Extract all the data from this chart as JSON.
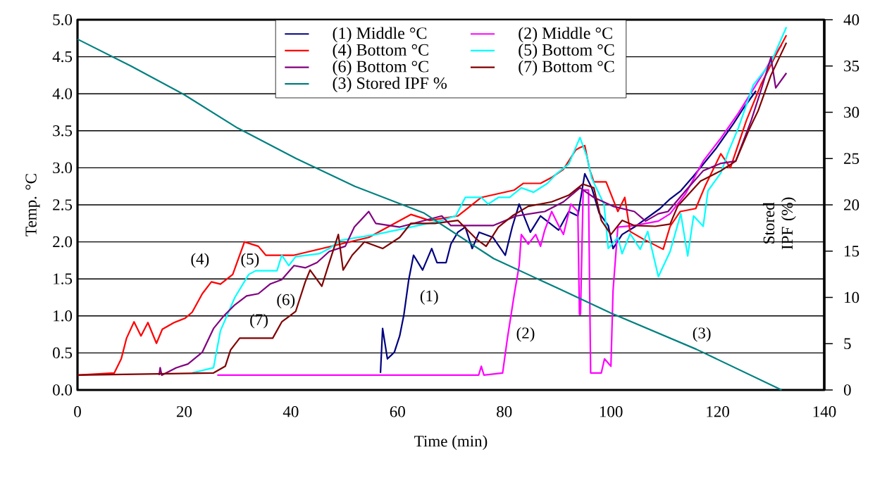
{
  "chart_data": {
    "type": "line",
    "xlabel": "Time (min)",
    "ylabel": "Temp. °C",
    "y2label": "Stored IPF (%)",
    "xlim": [
      0,
      140
    ],
    "xticks": [
      0,
      20,
      40,
      60,
      80,
      100,
      120,
      140
    ],
    "ylim": [
      0,
      5
    ],
    "yticks": [
      {
        "value": 0,
        "label": "0.0"
      },
      {
        "value": 0.5,
        "label": "0.5"
      },
      {
        "value": 1,
        "label": "1.0"
      },
      {
        "value": 1.5,
        "label": "1.5"
      },
      {
        "value": 2,
        "label": "2.0"
      },
      {
        "value": 2.5,
        "label": "2.5"
      },
      {
        "value": 3,
        "label": "3.0"
      },
      {
        "value": 3.5,
        "label": "3.5"
      },
      {
        "value": 4,
        "label": "4.0"
      },
      {
        "value": 4.5,
        "label": "4.5"
      },
      {
        "value": 5,
        "label": "5.0"
      }
    ],
    "y2lim": [
      0,
      40
    ],
    "y2ticks": [
      0,
      5,
      10,
      15,
      20,
      25,
      30,
      35,
      40
    ],
    "grid": "y",
    "legend": "top",
    "series": [
      {
        "name": "(1) Middle °C",
        "color": "#000080",
        "x": [
          56.8,
          57.2,
          58.1,
          59.4,
          60.4,
          61.2,
          62.1,
          63,
          64.7,
          66.4,
          67.4,
          69.1,
          70,
          71.3,
          72.7,
          74,
          75.3,
          77.9,
          80.2,
          81.5,
          82.8,
          84.9,
          86.8,
          90.2,
          92.1,
          93.8,
          95.1,
          96.4,
          97.8,
          99.5,
          100.4,
          102.1,
          104.4,
          109.2,
          111.1,
          113.1,
          115.5,
          119.7,
          123,
          124.8,
          127.2
        ],
        "values": [
          0.23,
          0.83,
          0.42,
          0.51,
          0.73,
          1.02,
          1.49,
          1.82,
          1.62,
          1.91,
          1.72,
          1.72,
          1.97,
          2.13,
          2.2,
          1.91,
          2.13,
          2.06,
          1.82,
          2.2,
          2.51,
          2.13,
          2.35,
          2.16,
          2.41,
          2.35,
          2.92,
          2.73,
          2.39,
          2.22,
          1.91,
          2.1,
          2.2,
          2.45,
          2.58,
          2.69,
          2.89,
          3.26,
          3.6,
          3.8,
          4.04
        ]
      },
      {
        "name": "(2) Middle °C",
        "color": "#ff00ff",
        "x": [
          26.2,
          75.2,
          75.7,
          76.2,
          79.7,
          80.6,
          81.9,
          82.8,
          83.2,
          84.5,
          85.9,
          86.8,
          87.6,
          88.9,
          90.2,
          91.1,
          92.5,
          93.8,
          94.1,
          94.3,
          94.8,
          95.8,
          96.2,
          98.2,
          98.8,
          100,
          100.4,
          101.3,
          104.4,
          108.9,
          111.1,
          114,
          117.3,
          120.6,
          123.9,
          127.2,
          130,
          132
        ],
        "values": [
          0.2,
          0.2,
          0.32,
          0.2,
          0.23,
          0.7,
          1.3,
          1.68,
          2.1,
          1.97,
          2.1,
          1.94,
          2.16,
          2.41,
          2.22,
          2.1,
          2.51,
          2.41,
          1.02,
          1.02,
          2.7,
          2.7,
          0.23,
          0.23,
          0.42,
          0.32,
          1.34,
          2.2,
          2.22,
          2.28,
          2.38,
          2.65,
          3.09,
          3.4,
          3.74,
          4.12,
          4.45,
          4.66
        ]
      },
      {
        "name": "(4) Bottom °C",
        "color": "#ff0000",
        "x": [
          0,
          6.9,
          8.2,
          9.2,
          10.6,
          11.9,
          13.2,
          14.8,
          15.9,
          18.1,
          20.2,
          21.5,
          23.4,
          25.1,
          26.8,
          29.1,
          31.3,
          33.9,
          35.3,
          40.6,
          54.6,
          62.5,
          66,
          71.3,
          73.6,
          75.7,
          81.9,
          83.6,
          86.8,
          88.9,
          91.1,
          93.4,
          94.1,
          95.1,
          96,
          96.8,
          99.1,
          101.3,
          102.6,
          103.6,
          106,
          109.8,
          111.1,
          113,
          115.9,
          117.7,
          120.6,
          122.4,
          125.4,
          128.1,
          130.9,
          132.9
        ],
        "values": [
          0.2,
          0.23,
          0.42,
          0.7,
          0.92,
          0.73,
          0.91,
          0.63,
          0.82,
          0.91,
          0.97,
          1.05,
          1.3,
          1.46,
          1.43,
          1.56,
          2.0,
          1.94,
          1.82,
          1.82,
          2.06,
          2.37,
          2.29,
          2.35,
          2.48,
          2.6,
          2.7,
          2.79,
          2.79,
          2.87,
          2.98,
          3.24,
          3.27,
          3.3,
          2.98,
          2.81,
          2.81,
          2.41,
          2.6,
          2.14,
          2.04,
          1.9,
          2.21,
          2.41,
          2.45,
          2.76,
          3.19,
          3.0,
          3.64,
          4.12,
          4.52,
          4.79
        ]
      },
      {
        "name": "(5) Bottom °C",
        "color": "#00ffff",
        "x": [
          21.5,
          25.5,
          26.8,
          29.5,
          32.1,
          33.4,
          37.4,
          38.3,
          39.6,
          40.9,
          45.3,
          47.2,
          49.3,
          55.9,
          62.5,
          68.3,
          70.9,
          72.7,
          75.7,
          77,
          78.9,
          81,
          83.2,
          85.5,
          88.1,
          89.8,
          92.1,
          94.2,
          95.5,
          96.4,
          98.7,
          99.5,
          101.3,
          102.1,
          103.6,
          105.5,
          106.9,
          108.9,
          111.1,
          113.1,
          114.4,
          115.5,
          117.3,
          118.2,
          120.6,
          122.1,
          123.9,
          126.7,
          130,
          132.9
        ],
        "values": [
          0.23,
          0.3,
          0.8,
          1.25,
          1.56,
          1.61,
          1.61,
          1.82,
          1.68,
          1.8,
          1.84,
          1.91,
          2.02,
          2.1,
          2.2,
          2.29,
          2.35,
          2.6,
          2.6,
          2.51,
          2.6,
          2.6,
          2.73,
          2.67,
          2.79,
          2.92,
          3.05,
          3.41,
          3.15,
          2.86,
          2.51,
          1.91,
          2.06,
          1.84,
          2.11,
          1.9,
          2.14,
          1.53,
          1.87,
          2.38,
          1.81,
          2.35,
          2.21,
          2.69,
          2.93,
          3.23,
          3.54,
          4.12,
          4.42,
          4.9
        ]
      },
      {
        "name": "(6) Bottom °C",
        "color": "#800080",
        "x": [
          15.3,
          15.5,
          15.8,
          18.5,
          20.7,
          23.4,
          25.5,
          27.3,
          29.5,
          31.7,
          33.9,
          36.1,
          38.3,
          40.6,
          42.7,
          44.9,
          47.2,
          50.2,
          51.9,
          54.6,
          55.9,
          60.4,
          68.3,
          70,
          77.9,
          82.3,
          87.6,
          91.1,
          94.2,
          96.8,
          100.4,
          104.4,
          106.5,
          108.9,
          110.7,
          114,
          117.3,
          120.6,
          123.4,
          126.3,
          128.1,
          130,
          130.9,
          132.9
        ],
        "values": [
          0.2,
          0.3,
          0.2,
          0.3,
          0.35,
          0.51,
          0.83,
          0.99,
          1.15,
          1.27,
          1.3,
          1.43,
          1.49,
          1.68,
          1.65,
          1.72,
          1.87,
          1.94,
          2.2,
          2.41,
          2.25,
          2.2,
          2.35,
          2.22,
          2.22,
          2.35,
          2.41,
          2.54,
          2.73,
          2.6,
          2.48,
          2.41,
          2.28,
          2.38,
          2.41,
          2.69,
          2.96,
          3.06,
          3.09,
          3.64,
          4.04,
          4.49,
          4.08,
          4.28
        ]
      },
      {
        "name": "(7) Bottom °C",
        "color": "#800000",
        "x": [
          0,
          25.5,
          27.7,
          28.7,
          30.4,
          36.6,
          38.3,
          39.6,
          40.9,
          42.7,
          43.6,
          45.8,
          47.2,
          48.9,
          49.8,
          51.5,
          53.8,
          57.2,
          60.4,
          62.5,
          67,
          71.3,
          74.9,
          76.6,
          78.9,
          81.5,
          84.5,
          88.9,
          92.1,
          94.7,
          96.8,
          98.2,
          100,
          102.1,
          104.4,
          108.3,
          111.1,
          112.5,
          116.8,
          120.6,
          123.4,
          125.8,
          127.6,
          130,
          132.9
        ],
        "values": [
          0.2,
          0.23,
          0.32,
          0.54,
          0.7,
          0.7,
          0.92,
          0.99,
          1.06,
          1.46,
          1.62,
          1.4,
          1.72,
          2.1,
          1.62,
          1.82,
          2.0,
          1.91,
          2.06,
          2.25,
          2.25,
          2.29,
          2.03,
          1.94,
          2.2,
          2.35,
          2.48,
          2.54,
          2.63,
          2.78,
          2.73,
          2.29,
          2.1,
          2.29,
          2.22,
          2.21,
          2.24,
          2.48,
          2.82,
          2.96,
          3.09,
          3.5,
          3.77,
          4.25,
          4.69
        ]
      },
      {
        "name": "(3) Stored IPF %",
        "color": "#008080",
        "axis": "y2",
        "x": [
          0,
          10,
          20,
          30,
          41,
          52,
          65,
          78,
          90,
          100,
          116,
          132
        ],
        "values": [
          37.9,
          35,
          31.9,
          28.3,
          25.0,
          22,
          19.1,
          14.2,
          11,
          8.3,
          4.4,
          0
        ]
      }
    ],
    "annotations": [
      "(1)",
      "(2)",
      "(3)",
      "(4)",
      "(5)",
      "(6)",
      "(7)"
    ]
  }
}
